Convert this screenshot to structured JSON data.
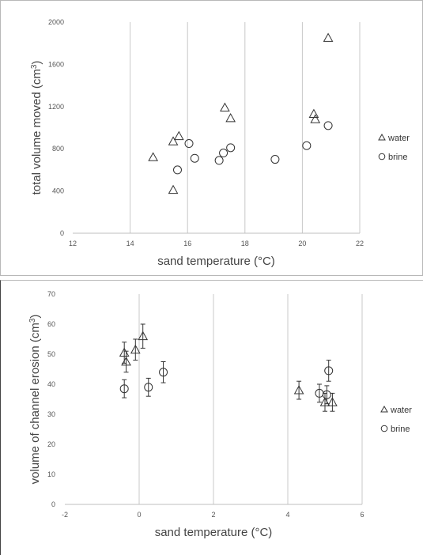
{
  "chart_data": [
    {
      "type": "scatter",
      "title": "",
      "xlabel": "sand temperature (°C)",
      "ylabel_main": "total volume moved (cm",
      "ylabel_sup": "3",
      "ylabel_close": ")",
      "xlim": [
        12,
        22
      ],
      "ylim": [
        0,
        2000
      ],
      "xticks": [
        12,
        14,
        16,
        18,
        20,
        22
      ],
      "yticks": [
        0,
        400,
        800,
        1200,
        1600,
        2000
      ],
      "vgrid": [
        14,
        16,
        18,
        20,
        22
      ],
      "legend_position": "right",
      "series": [
        {
          "name": "water",
          "marker": "triangle",
          "points": [
            {
              "x": 14.8,
              "y": 720
            },
            {
              "x": 15.5,
              "y": 870
            },
            {
              "x": 15.7,
              "y": 920
            },
            {
              "x": 15.5,
              "y": 410
            },
            {
              "x": 17.3,
              "y": 1190
            },
            {
              "x": 17.5,
              "y": 1090
            },
            {
              "x": 20.4,
              "y": 1130
            },
            {
              "x": 20.45,
              "y": 1080
            },
            {
              "x": 20.9,
              "y": 1850
            }
          ]
        },
        {
          "name": "brine",
          "marker": "circle",
          "points": [
            {
              "x": 15.65,
              "y": 600
            },
            {
              "x": 16.05,
              "y": 850
            },
            {
              "x": 16.25,
              "y": 710
            },
            {
              "x": 17.1,
              "y": 690
            },
            {
              "x": 17.25,
              "y": 760
            },
            {
              "x": 17.5,
              "y": 810
            },
            {
              "x": 19.05,
              "y": 700
            },
            {
              "x": 20.15,
              "y": 830
            },
            {
              "x": 20.9,
              "y": 1020
            }
          ]
        }
      ]
    },
    {
      "type": "scatter",
      "title": "",
      "xlabel": "sand temperature (°C)",
      "ylabel_main": "volume of channel erosion (cm",
      "ylabel_sup": "3",
      "ylabel_close": ")",
      "xlim": [
        -2,
        6
      ],
      "ylim": [
        0,
        70
      ],
      "xticks": [
        -2,
        0,
        2,
        4,
        6
      ],
      "yticks": [
        0,
        10,
        20,
        30,
        40,
        50,
        60,
        70
      ],
      "vgrid": [
        0,
        2,
        4,
        6
      ],
      "legend_position": "right",
      "series": [
        {
          "name": "water",
          "marker": "triangle",
          "points": [
            {
              "x": -0.4,
              "y": 50.5,
              "err": 3.5
            },
            {
              "x": -0.35,
              "y": 47.5,
              "err": 3.5
            },
            {
              "x": -0.1,
              "y": 51.5,
              "err": 3.5
            },
            {
              "x": 0.1,
              "y": 56,
              "err": 4
            },
            {
              "x": 4.3,
              "y": 38,
              "err": 3
            },
            {
              "x": 5.0,
              "y": 34,
              "err": 3
            },
            {
              "x": 5.2,
              "y": 34,
              "err": 3
            }
          ]
        },
        {
          "name": "brine",
          "marker": "circle",
          "points": [
            {
              "x": -0.4,
              "y": 38.5,
              "err": 3
            },
            {
              "x": 0.25,
              "y": 39,
              "err": 3
            },
            {
              "x": 0.65,
              "y": 44,
              "err": 3.5
            },
            {
              "x": 4.85,
              "y": 37,
              "err": 3
            },
            {
              "x": 5.05,
              "y": 36.5,
              "err": 3
            },
            {
              "x": 5.1,
              "y": 44.5,
              "err": 3.5
            }
          ]
        }
      ]
    }
  ]
}
